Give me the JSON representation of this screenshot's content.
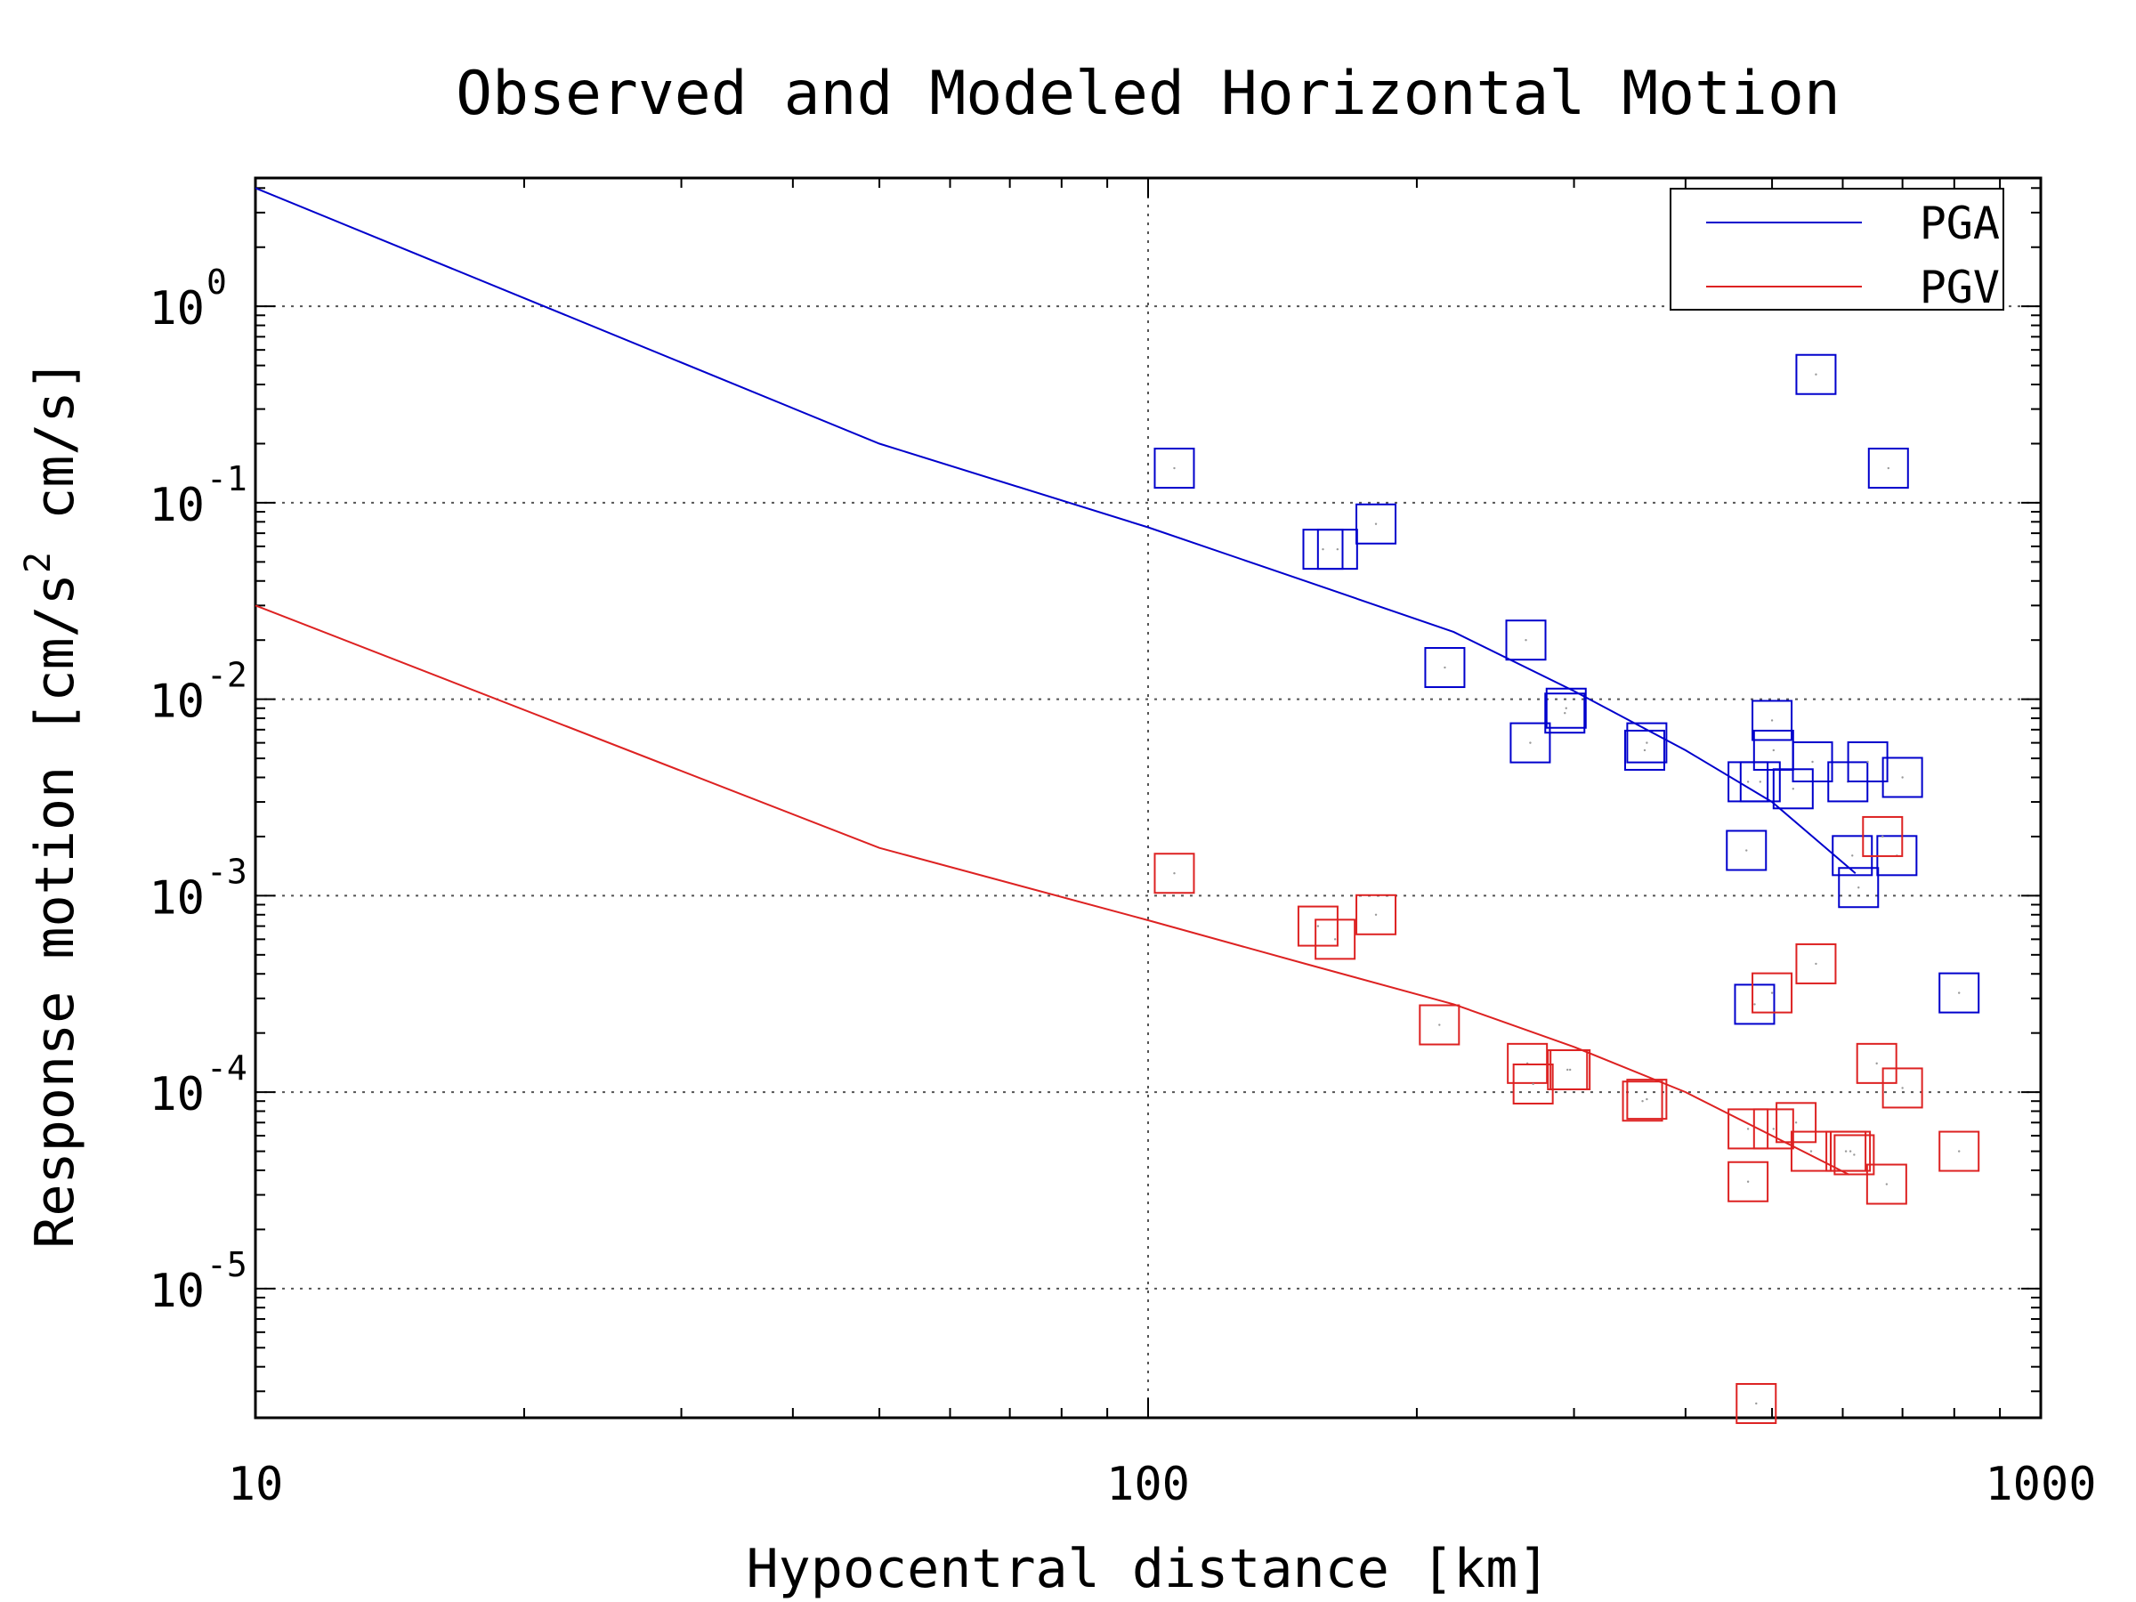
{
  "chart_data": {
    "type": "scatter",
    "title": "Observed and Modeled Horizontal Motion",
    "xlabel": "Hypocentral distance [km]",
    "ylabel": "Response motion  [cm/s^2  cm/s]",
    "x_scale": "log",
    "y_scale": "log",
    "xlim": [
      10,
      1000
    ],
    "ylim": [
      2.2e-06,
      4.5
    ],
    "x_ticks": [
      {
        "value": 10,
        "label": "10"
      },
      {
        "value": 100,
        "label": "100"
      },
      {
        "value": 1000,
        "label": "1000"
      }
    ],
    "y_ticks": [
      {
        "value": 1,
        "base": "10",
        "exp": "0"
      },
      {
        "value": 0.1,
        "base": "10",
        "exp": "-1"
      },
      {
        "value": 0.01,
        "base": "10",
        "exp": "-2"
      },
      {
        "value": 0.001,
        "base": "10",
        "exp": "-3"
      },
      {
        "value": 0.0001,
        "base": "10",
        "exp": "-4"
      },
      {
        "value": 1e-05,
        "base": "10",
        "exp": "-5"
      }
    ],
    "grid": "dotted at major ticks",
    "legend": {
      "placement": "top-right"
    },
    "series": [
      {
        "name": "PGA",
        "color": "#0000cc",
        "model": [
          [
            10,
            4.0
          ],
          [
            50,
            0.2
          ],
          [
            100,
            0.075
          ],
          [
            150,
            0.04
          ],
          [
            220,
            0.022
          ],
          [
            300,
            0.011
          ],
          [
            400,
            0.0055
          ],
          [
            500,
            0.003
          ],
          [
            620,
            0.0013
          ]
        ],
        "observed": [
          [
            107,
            0.15
          ],
          [
            157,
            0.058
          ],
          [
            163,
            0.058
          ],
          [
            180,
            0.078
          ],
          [
            215,
            0.0145
          ],
          [
            265,
            0.02
          ],
          [
            268,
            0.006
          ],
          [
            293,
            0.0085
          ],
          [
            294,
            0.009
          ],
          [
            360,
            0.0055
          ],
          [
            362,
            0.006
          ],
          [
            470,
            0.0038
          ],
          [
            485,
            0.0038
          ],
          [
            500,
            0.0078
          ],
          [
            502,
            0.0055
          ],
          [
            528,
            0.0035
          ],
          [
            555,
            0.0048
          ],
          [
            560,
            0.45
          ],
          [
            608,
            0.0038
          ],
          [
            615,
            0.0016
          ],
          [
            625,
            0.0011
          ],
          [
            640,
            0.0048
          ],
          [
            675,
            0.15
          ],
          [
            690,
            0.0016
          ],
          [
            700,
            0.004
          ],
          [
            468,
            0.0017
          ],
          [
            478,
            0.00028
          ],
          [
            810,
            0.00032
          ]
        ]
      },
      {
        "name": "PGV",
        "color": "#dd2222",
        "model": [
          [
            10,
            0.03
          ],
          [
            50,
            0.00175
          ],
          [
            100,
            0.00075
          ],
          [
            150,
            0.00045
          ],
          [
            220,
            0.00028
          ],
          [
            300,
            0.00017
          ],
          [
            400,
            0.0001
          ],
          [
            500,
            6e-05
          ],
          [
            610,
            3.8e-05
          ]
        ],
        "observed": [
          [
            107,
            0.0013
          ],
          [
            155,
            0.0007
          ],
          [
            162,
            0.0006
          ],
          [
            180,
            0.0008
          ],
          [
            212,
            0.00022
          ],
          [
            266,
            0.00014
          ],
          [
            270,
            0.00011
          ],
          [
            295,
            0.00013
          ],
          [
            297,
            0.00013
          ],
          [
            358,
            9e-05
          ],
          [
            362,
            9.2e-05
          ],
          [
            470,
            6.5e-05
          ],
          [
            470,
            3.5e-05
          ],
          [
            480,
            2.6e-06
          ],
          [
            500,
            0.00032
          ],
          [
            502,
            6.5e-05
          ],
          [
            532,
            7e-05
          ],
          [
            553,
            5e-05
          ],
          [
            560,
            0.00045
          ],
          [
            605,
            5e-05
          ],
          [
            612,
            5e-05
          ],
          [
            618,
            4.8e-05
          ],
          [
            655,
            0.00014
          ],
          [
            665,
            0.002
          ],
          [
            672,
            3.4e-05
          ],
          [
            700,
            0.000105
          ],
          [
            810,
            5e-05
          ]
        ]
      }
    ]
  }
}
